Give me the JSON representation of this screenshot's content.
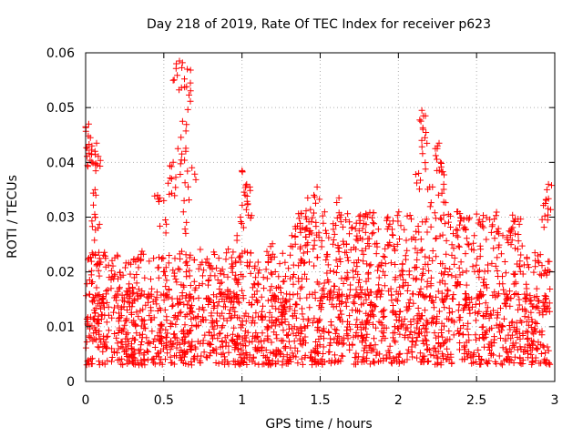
{
  "chart_data": {
    "type": "scatter",
    "title": "Day 218 of 2019, Rate Of TEC Index for receiver p623",
    "xlabel": "GPS time / hours",
    "ylabel": "ROTI / TECUs",
    "xlim": [
      0,
      3.0
    ],
    "ylim": [
      0,
      0.06
    ],
    "xticks": [
      0,
      0.5,
      1,
      1.5,
      2,
      2.5,
      3
    ],
    "xtick_labels": [
      "0",
      "0.5",
      "1",
      "1.5",
      "2",
      "2.5",
      "3"
    ],
    "yticks": [
      0,
      0.01,
      0.02,
      0.03,
      0.04,
      0.05,
      0.06
    ],
    "ytick_labels": [
      "0",
      "0.01",
      "0.02",
      "0.03",
      "0.04",
      "0.05",
      "0.06"
    ],
    "grid": true,
    "marker": "+",
    "color": "#ff0000",
    "series_peaks": [
      {
        "x": 0.0,
        "y": 0.0465
      },
      {
        "x": 0.02,
        "y": 0.047
      },
      {
        "x": 0.03,
        "y": 0.0445
      },
      {
        "x": 0.04,
        "y": 0.043
      },
      {
        "x": 0.06,
        "y": 0.042
      },
      {
        "x": 0.07,
        "y": 0.0435
      },
      {
        "x": 0.06,
        "y": 0.035
      },
      {
        "x": 0.065,
        "y": 0.034
      },
      {
        "x": 0.08,
        "y": 0.028
      },
      {
        "x": 0.58,
        "y": 0.058
      },
      {
        "x": 0.6,
        "y": 0.0585
      },
      {
        "x": 0.62,
        "y": 0.0475
      },
      {
        "x": 0.65,
        "y": 0.057
      },
      {
        "x": 0.67,
        "y": 0.0545
      },
      {
        "x": 0.59,
        "y": 0.0425
      },
      {
        "x": 0.56,
        "y": 0.04
      },
      {
        "x": 0.55,
        "y": 0.037
      },
      {
        "x": 0.64,
        "y": 0.042
      },
      {
        "x": 0.68,
        "y": 0.039
      },
      {
        "x": 0.46,
        "y": 0.034
      },
      {
        "x": 0.5,
        "y": 0.033
      },
      {
        "x": 0.63,
        "y": 0.033
      },
      {
        "x": 1.0,
        "y": 0.0385
      },
      {
        "x": 1.03,
        "y": 0.036
      },
      {
        "x": 1.05,
        "y": 0.0355
      },
      {
        "x": 1.02,
        "y": 0.034
      },
      {
        "x": 0.99,
        "y": 0.03
      },
      {
        "x": 1.42,
        "y": 0.0335
      },
      {
        "x": 1.46,
        "y": 0.034
      },
      {
        "x": 1.48,
        "y": 0.0355
      },
      {
        "x": 1.62,
        "y": 0.0335
      },
      {
        "x": 2.15,
        "y": 0.0495
      },
      {
        "x": 2.16,
        "y": 0.0485
      },
      {
        "x": 2.17,
        "y": 0.0445
      },
      {
        "x": 2.25,
        "y": 0.043
      },
      {
        "x": 2.26,
        "y": 0.0435
      },
      {
        "x": 2.27,
        "y": 0.04
      },
      {
        "x": 2.13,
        "y": 0.038
      },
      {
        "x": 2.2,
        "y": 0.0355
      },
      {
        "x": 2.29,
        "y": 0.036
      },
      {
        "x": 2.38,
        "y": 0.031
      },
      {
        "x": 2.95,
        "y": 0.035
      },
      {
        "x": 2.96,
        "y": 0.036
      },
      {
        "x": 2.94,
        "y": 0.0325
      }
    ],
    "background_distribution": {
      "x_range": [
        0,
        2.97
      ],
      "baseline_y_range": [
        0.003,
        0.016
      ],
      "elevated_y_range": [
        0.015,
        0.031
      ],
      "point_count": 2400
    }
  }
}
